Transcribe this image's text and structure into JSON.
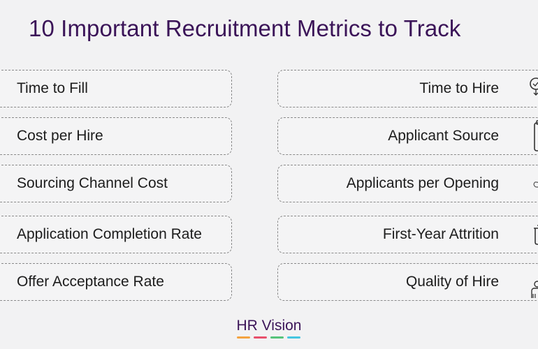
{
  "title": "10 Important Recruitment Metrics to Track",
  "left_metrics": [
    "Time to Fill",
    "Cost per Hire",
    "Sourcing Channel Cost",
    "Application Completion Rate",
    "Offer Acceptance Rate"
  ],
  "right_metrics": [
    "Time to Hire",
    "Applicant Source",
    "Applicants per Opening",
    "First-Year Attrition",
    "Quality of Hire"
  ],
  "right_icons": [
    "stopwatch-icon",
    "clipboard-icon",
    "hand-icon",
    "trash-icon",
    "people-icon"
  ],
  "logo": {
    "text": "HR Vision",
    "bar_colors": [
      "#f4a340",
      "#e8506c",
      "#56c37a",
      "#45c6e0"
    ]
  },
  "colors": {
    "title": "#3b1458",
    "icon_ring": "#4a6bd8"
  }
}
